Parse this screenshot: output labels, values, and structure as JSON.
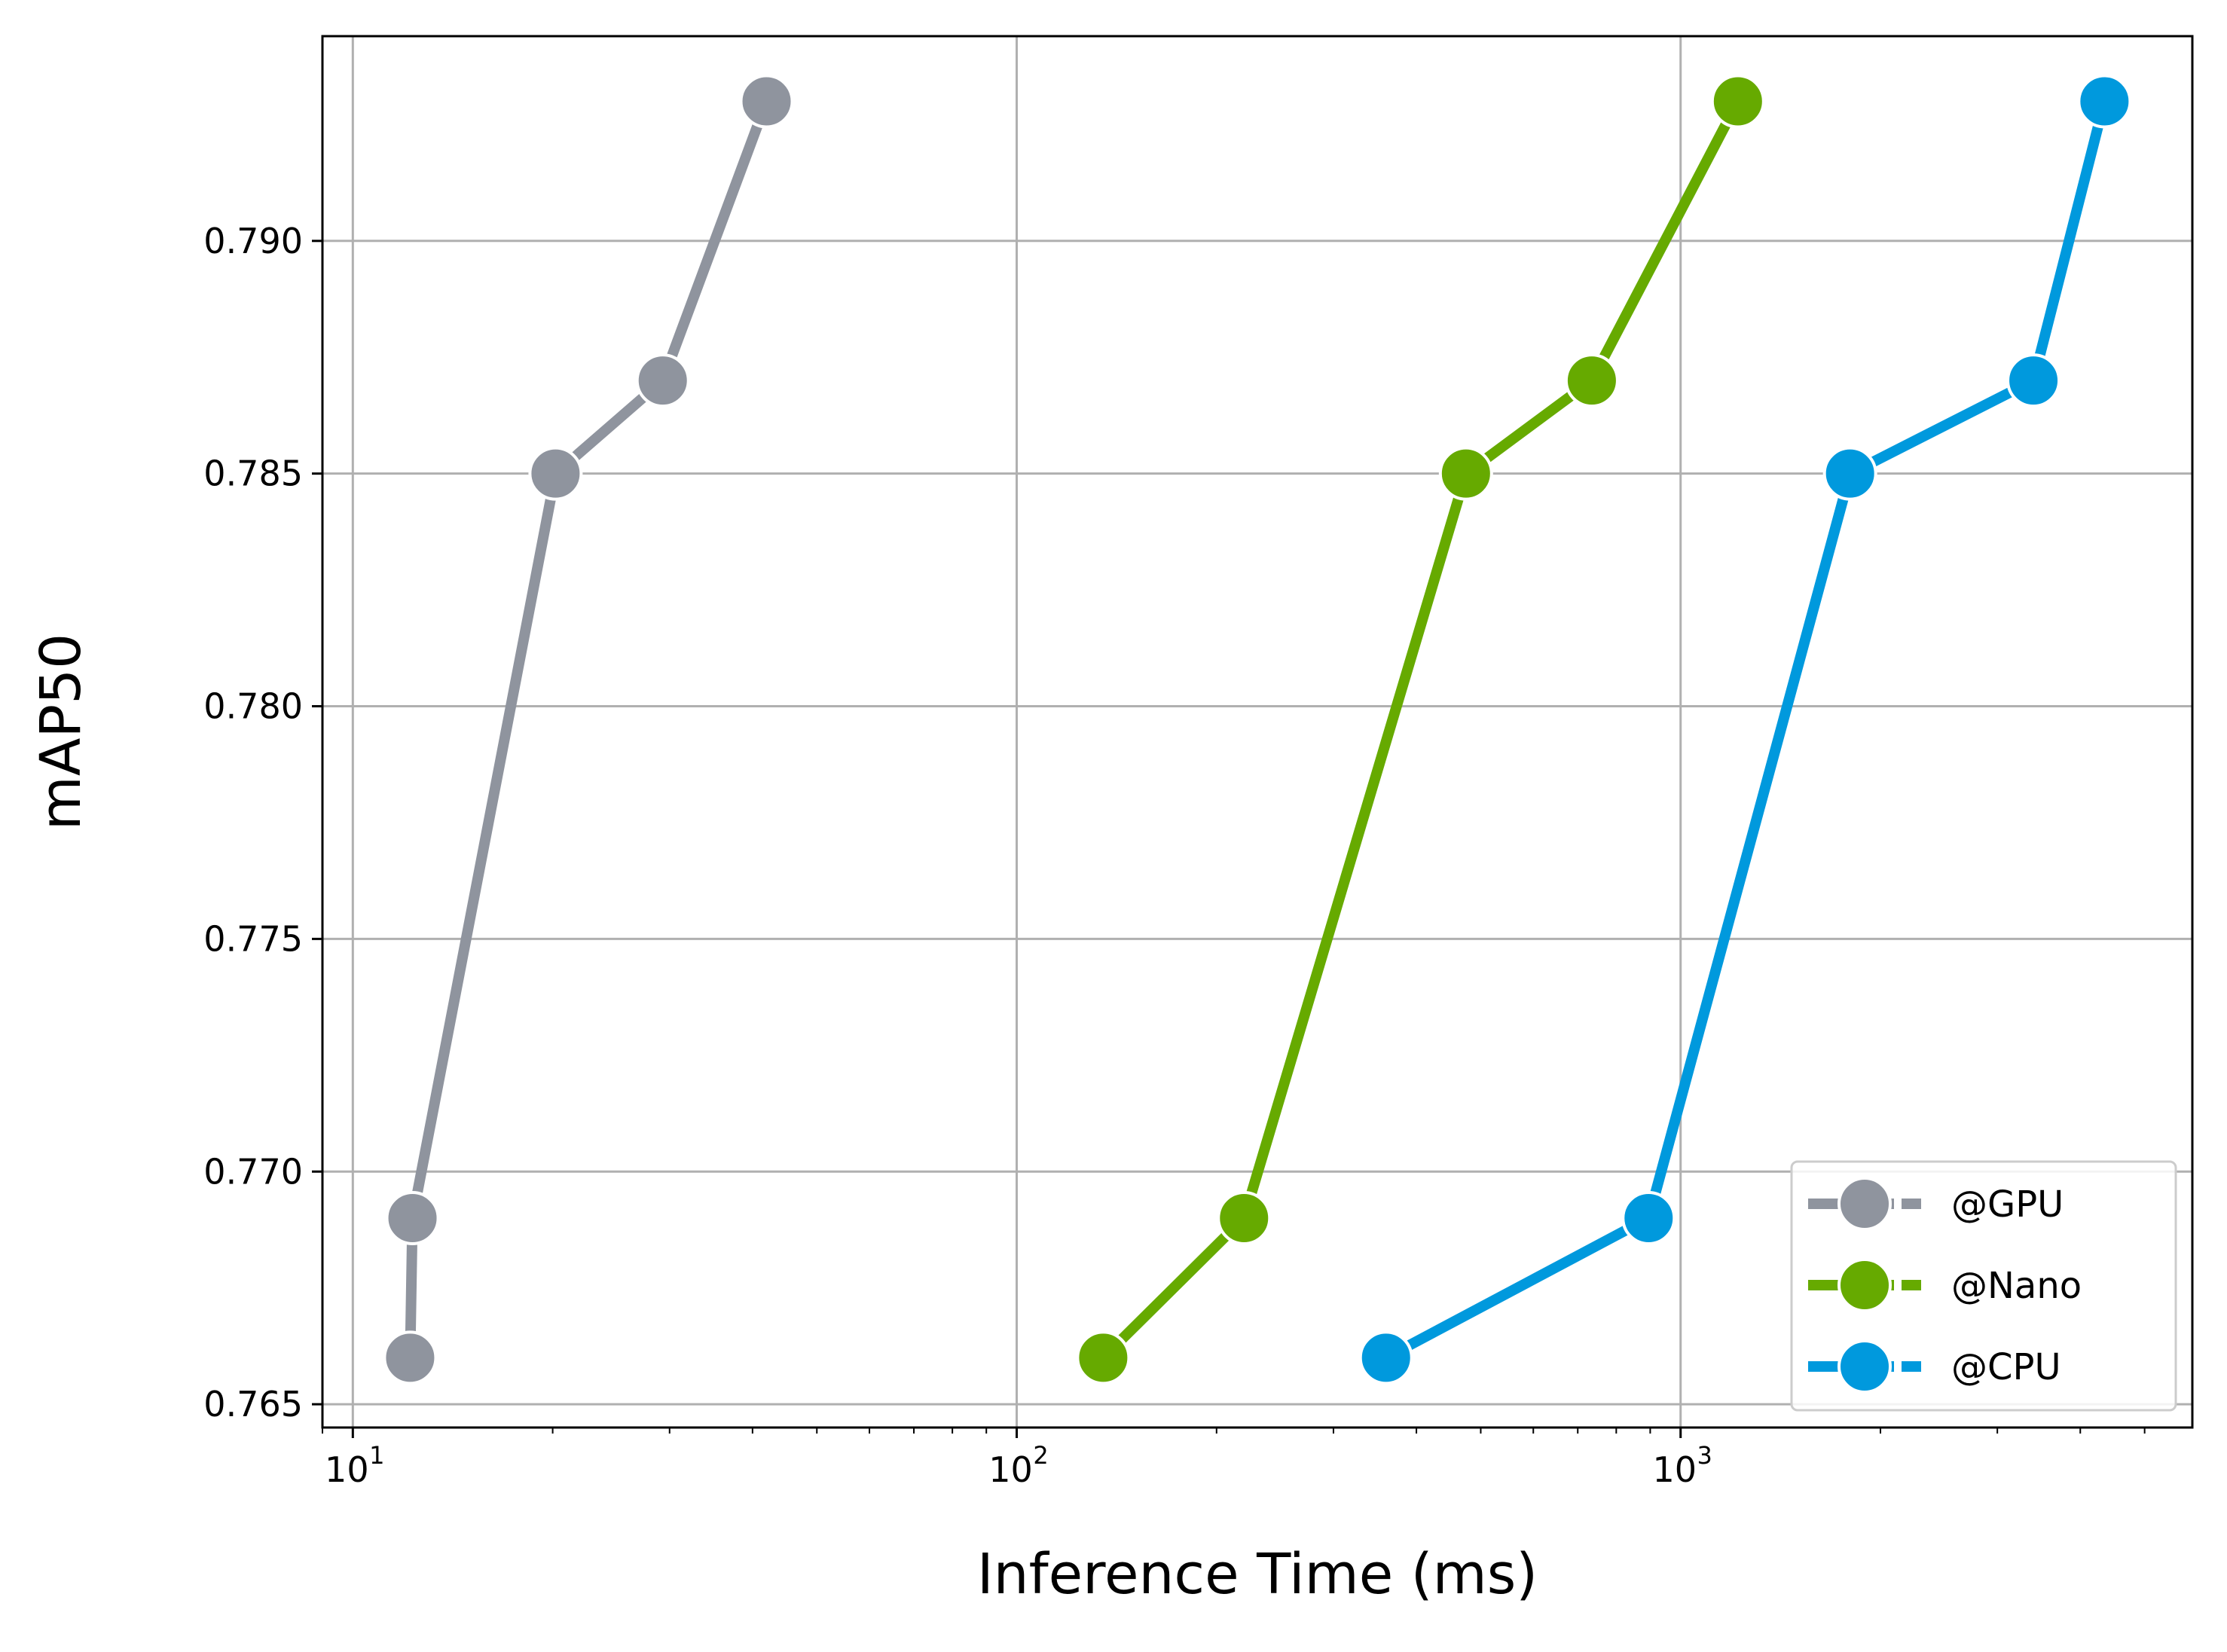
{
  "chart_data": {
    "type": "line",
    "xlabel": "Inference Time (ms)",
    "ylabel": "mAP50",
    "xscale": "log",
    "xlim": [
      9,
      5900
    ],
    "ylim": [
      0.7645,
      0.7944
    ],
    "x_ticks": [
      {
        "value": 10,
        "base": "10",
        "exp": "1"
      },
      {
        "value": 100,
        "base": "10",
        "exp": "2"
      },
      {
        "value": 1000,
        "base": "10",
        "exp": "3"
      }
    ],
    "y_ticks": [
      0.765,
      0.77,
      0.775,
      0.78,
      0.785,
      0.79
    ],
    "y_tick_labels": [
      "0.765",
      "0.770",
      "0.775",
      "0.780",
      "0.785",
      "0.790"
    ],
    "grid": true,
    "legend_position": "lower-right",
    "series": [
      {
        "name": "@GPU",
        "color": "#8f949e",
        "x": [
          12.2,
          12.3,
          20.2,
          29.3,
          42.0
        ],
        "y": [
          0.766,
          0.769,
          0.785,
          0.787,
          0.793
        ]
      },
      {
        "name": "@Nano",
        "color": "#66aa00",
        "x": [
          135,
          220,
          475,
          735,
          1220
        ],
        "y": [
          0.766,
          0.769,
          0.785,
          0.787,
          0.793
        ]
      },
      {
        "name": "@CPU",
        "color": "#0099dd",
        "x": [
          360,
          895,
          1800,
          3400,
          4350
        ],
        "y": [
          0.766,
          0.769,
          0.785,
          0.787,
          0.793
        ]
      }
    ]
  }
}
